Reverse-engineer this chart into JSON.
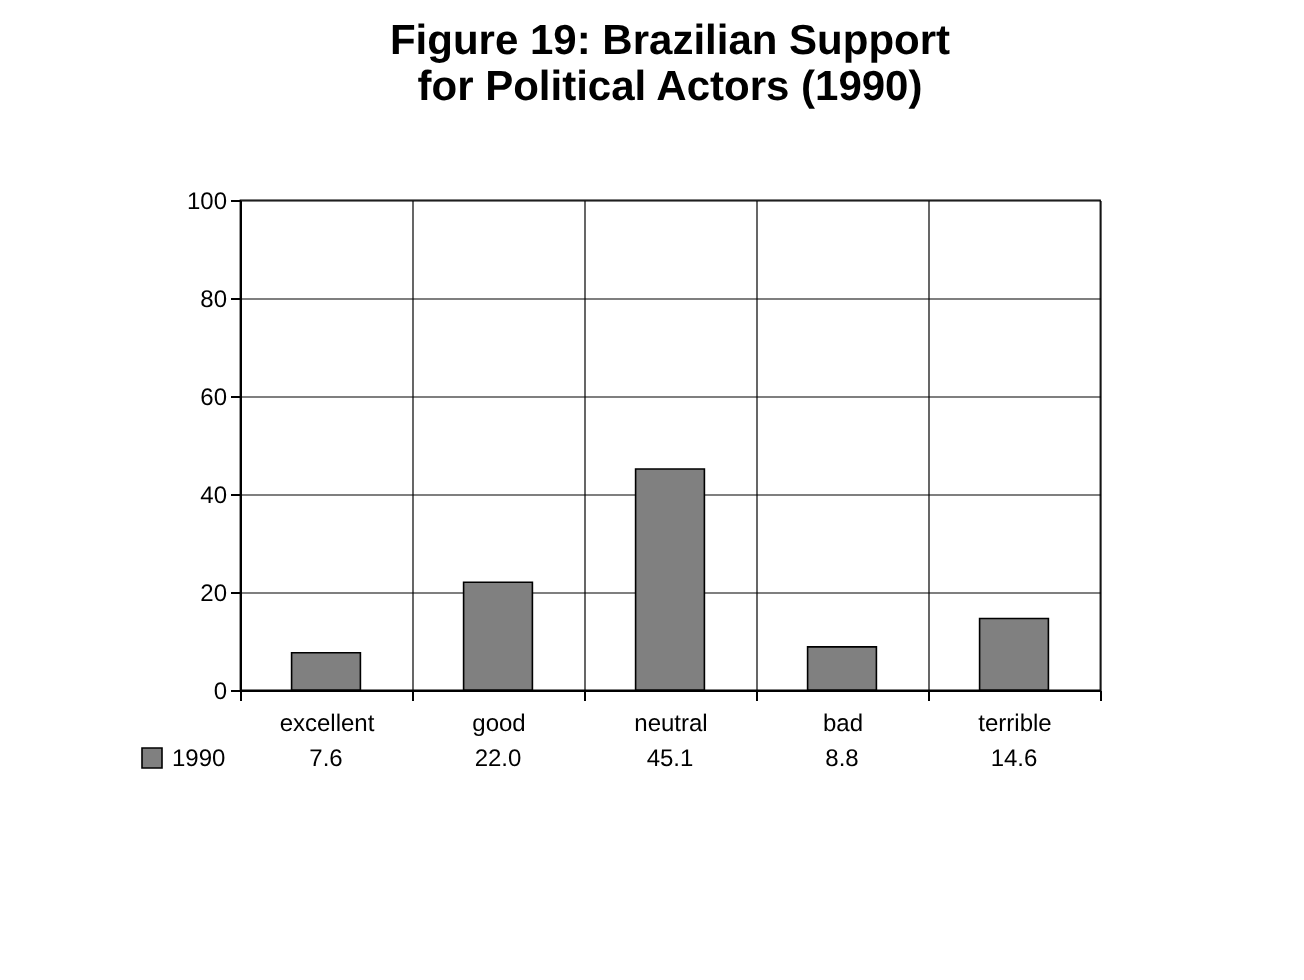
{
  "chart_data": {
    "type": "bar",
    "title": "Figure 19: Brazilian Support for Political Actors (1990)",
    "categories": [
      "excellent",
      "good",
      "neutral",
      "bad",
      "terrible"
    ],
    "series": [
      {
        "name": "1990",
        "color": "#808080",
        "values": [
          7.6,
          22.0,
          45.1,
          8.8,
          14.6
        ],
        "value_labels": [
          "7.6",
          "22.0",
          "45.1",
          "8.8",
          "14.6"
        ]
      }
    ],
    "ylim": [
      0,
      100
    ],
    "yticks": [
      0,
      20,
      40,
      60,
      80,
      100
    ],
    "grid": "y",
    "legend": "bottom left"
  }
}
